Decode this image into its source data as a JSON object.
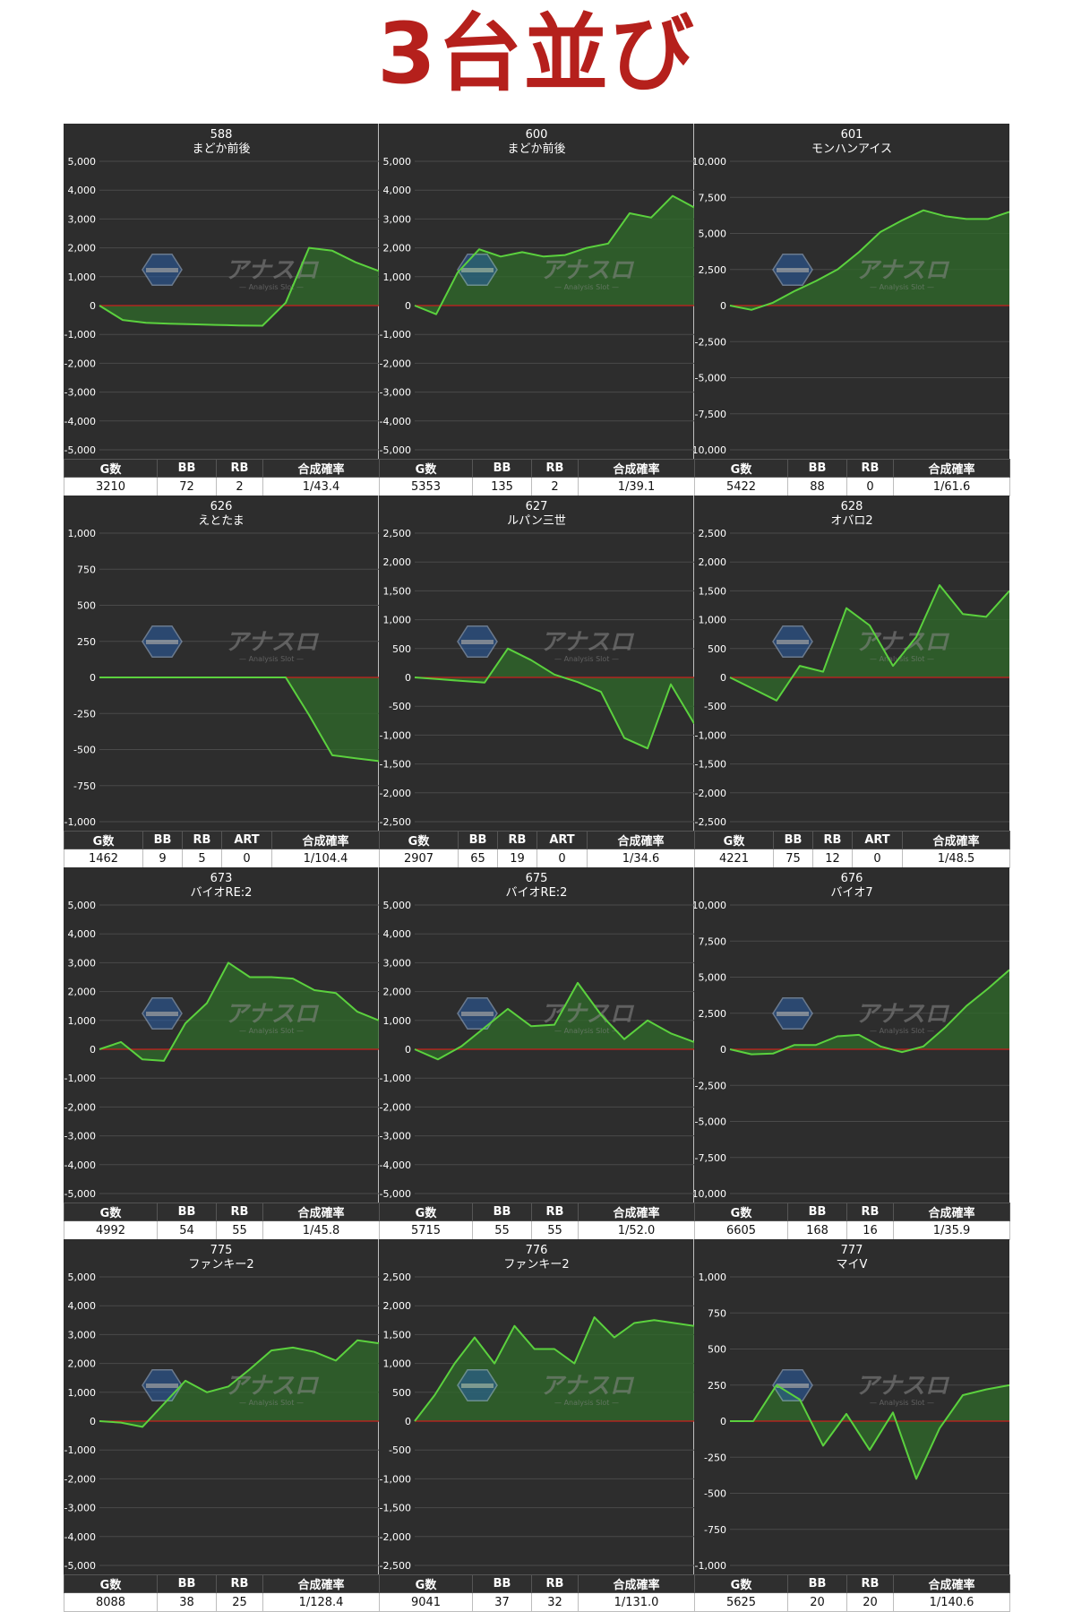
{
  "page": {
    "title": "3台並び"
  },
  "watermark": {
    "text": "アナスロ",
    "subtext": "— Analysis Slot —"
  },
  "colors": {
    "background": "#2d2d2d",
    "grid": "#4a4a4a",
    "line": "#5bd13e",
    "fill": "#2f6b2a",
    "zero_line": "#c8201e",
    "title_red": "#b5201c"
  },
  "chart_data": [
    {
      "type": "area",
      "machine_no": "588",
      "name": "まどか前後",
      "ylim": [
        -5000,
        5000
      ],
      "yticks": [
        "5,000",
        "4,000",
        "3,000",
        "2,000",
        "1,000",
        "0",
        "-1,000",
        "-2,000",
        "-3,000",
        "-4,000",
        "-5,000"
      ],
      "values": [
        0,
        -500,
        -600,
        -630,
        -650,
        -670,
        -690,
        -700,
        100,
        2000,
        1900,
        1500,
        1200
      ],
      "stats": {
        "headers": [
          "G数",
          "BB",
          "RB",
          "合成確率"
        ],
        "values": [
          "3210",
          "72",
          "2",
          "1/43.4"
        ]
      }
    },
    {
      "type": "area",
      "machine_no": "600",
      "name": "まどか前後",
      "ylim": [
        -5000,
        5000
      ],
      "yticks": [
        "5,000",
        "4,000",
        "3,000",
        "2,000",
        "1,000",
        "0",
        "-1,000",
        "-2,000",
        "-3,000",
        "-4,000",
        "-5,000"
      ],
      "values": [
        0,
        -300,
        1150,
        1950,
        1700,
        1850,
        1700,
        1750,
        2000,
        2150,
        3200,
        3050,
        3800,
        3400
      ],
      "stats": {
        "headers": [
          "G数",
          "BB",
          "RB",
          "合成確率"
        ],
        "values": [
          "5353",
          "135",
          "2",
          "1/39.1"
        ]
      }
    },
    {
      "type": "area",
      "machine_no": "601",
      "name": "モンハンアイス",
      "ylim": [
        -10000,
        10000
      ],
      "yticks": [
        "10,000",
        "7,500",
        "5,000",
        "2,500",
        "0",
        "-2,500",
        "-5,000",
        "-7,500",
        "-10,000"
      ],
      "values": [
        0,
        -300,
        200,
        1000,
        1700,
        2500,
        3700,
        5100,
        5900,
        6600,
        6200,
        6000,
        6000,
        6500
      ],
      "stats": {
        "headers": [
          "G数",
          "BB",
          "RB",
          "合成確率"
        ],
        "values": [
          "5422",
          "88",
          "0",
          "1/61.6"
        ]
      }
    },
    {
      "type": "area",
      "machine_no": "626",
      "name": "えとたま",
      "ylim": [
        -1000,
        1000
      ],
      "yticks": [
        "1,000",
        "750",
        "500",
        "250",
        "0",
        "-250",
        "-500",
        "-750",
        "-1,000"
      ],
      "values": [
        0,
        0,
        0,
        0,
        0,
        0,
        0,
        0,
        0,
        -260,
        -540,
        -560,
        -580
      ],
      "stats": {
        "headers": [
          "G数",
          "BB",
          "RB",
          "ART",
          "合成確率"
        ],
        "values": [
          "1462",
          "9",
          "5",
          "0",
          "1/104.4"
        ]
      }
    },
    {
      "type": "area",
      "machine_no": "627",
      "name": "ルパン三世",
      "ylim": [
        -2500,
        2500
      ],
      "yticks": [
        "2,500",
        "2,000",
        "1,500",
        "1,000",
        "500",
        "0",
        "-500",
        "-1,000",
        "-1,500",
        "-2,000",
        "-2,500"
      ],
      "values": [
        0,
        -30,
        -60,
        -90,
        500,
        300,
        50,
        -80,
        -250,
        -1050,
        -1230,
        -120,
        -800
      ],
      "stats": {
        "headers": [
          "G数",
          "BB",
          "RB",
          "ART",
          "合成確率"
        ],
        "values": [
          "2907",
          "65",
          "19",
          "0",
          "1/34.6"
        ]
      }
    },
    {
      "type": "area",
      "machine_no": "628",
      "name": "オバロ2",
      "ylim": [
        -2500,
        2500
      ],
      "yticks": [
        "2,500",
        "2,000",
        "1,500",
        "1,000",
        "500",
        "0",
        "-500",
        "-1,000",
        "-1,500",
        "-2,000",
        "-2,500"
      ],
      "values": [
        0,
        -200,
        -400,
        200,
        100,
        1200,
        900,
        200,
        700,
        1600,
        1100,
        1050,
        1500
      ],
      "stats": {
        "headers": [
          "G数",
          "BB",
          "RB",
          "ART",
          "合成確率"
        ],
        "values": [
          "4221",
          "75",
          "12",
          "0",
          "1/48.5"
        ]
      }
    },
    {
      "type": "area",
      "machine_no": "673",
      "name": "バイオRE:2",
      "ylim": [
        -5000,
        5000
      ],
      "yticks": [
        "5,000",
        "4,000",
        "3,000",
        "2,000",
        "1,000",
        "0",
        "-1,000",
        "-2,000",
        "-3,000",
        "-4,000",
        "-5,000"
      ],
      "values": [
        0,
        250,
        -350,
        -400,
        900,
        1600,
        3000,
        2500,
        2500,
        2450,
        2050,
        1950,
        1300,
        1000
      ],
      "stats": {
        "headers": [
          "G数",
          "BB",
          "RB",
          "合成確率"
        ],
        "values": [
          "4992",
          "54",
          "55",
          "1/45.8"
        ]
      }
    },
    {
      "type": "area",
      "machine_no": "675",
      "name": "バイオRE:2",
      "ylim": [
        -5000,
        5000
      ],
      "yticks": [
        "5,000",
        "4,000",
        "3,000",
        "2,000",
        "1,000",
        "0",
        "-1,000",
        "-2,000",
        "-3,000",
        "-4,000",
        "-5,000"
      ],
      "values": [
        0,
        -350,
        100,
        750,
        1400,
        800,
        850,
        2300,
        1200,
        350,
        1000,
        550,
        250
      ],
      "stats": {
        "headers": [
          "G数",
          "BB",
          "RB",
          "合成確率"
        ],
        "values": [
          "5715",
          "55",
          "55",
          "1/52.0"
        ]
      }
    },
    {
      "type": "area",
      "machine_no": "676",
      "name": "バイオ7",
      "ylim": [
        -10000,
        10000
      ],
      "yticks": [
        "10,000",
        "7,500",
        "5,000",
        "2,500",
        "0",
        "-2,500",
        "-5,000",
        "-7,500",
        "-10,000"
      ],
      "values": [
        0,
        -350,
        -300,
        300,
        300,
        900,
        1000,
        200,
        -200,
        200,
        1500,
        3000,
        4200,
        5500
      ],
      "stats": {
        "headers": [
          "G数",
          "BB",
          "RB",
          "合成確率"
        ],
        "values": [
          "6605",
          "168",
          "16",
          "1/35.9"
        ]
      }
    },
    {
      "type": "area",
      "machine_no": "775",
      "name": "ファンキー2",
      "ylim": [
        -5000,
        5000
      ],
      "yticks": [
        "5,000",
        "4,000",
        "3,000",
        "2,000",
        "1,000",
        "0",
        "-1,000",
        "-2,000",
        "-3,000",
        "-4,000",
        "-5,000"
      ],
      "values": [
        0,
        -50,
        -200,
        600,
        1400,
        1000,
        1200,
        1800,
        2450,
        2550,
        2400,
        2100,
        2800,
        2700
      ],
      "stats": {
        "headers": [
          "G数",
          "BB",
          "RB",
          "合成確率"
        ],
        "values": [
          "8088",
          "38",
          "25",
          "1/128.4"
        ]
      }
    },
    {
      "type": "area",
      "machine_no": "776",
      "name": "ファンキー2",
      "ylim": [
        -2500,
        2500
      ],
      "yticks": [
        "2,500",
        "2,000",
        "1,500",
        "1,000",
        "500",
        "0",
        "-500",
        "-1,000",
        "-1,500",
        "-2,000",
        "-2,500"
      ],
      "values": [
        0,
        450,
        1000,
        1450,
        1000,
        1650,
        1250,
        1250,
        1000,
        1800,
        1450,
        1700,
        1750,
        1700,
        1650
      ],
      "stats": {
        "headers": [
          "G数",
          "BB",
          "RB",
          "合成確率"
        ],
        "values": [
          "9041",
          "37",
          "32",
          "1/131.0"
        ]
      }
    },
    {
      "type": "area",
      "machine_no": "777",
      "name": "マイV",
      "ylim": [
        -1000,
        1000
      ],
      "yticks": [
        "1,000",
        "750",
        "500",
        "250",
        "0",
        "-250",
        "-500",
        "-750",
        "-1,000"
      ],
      "values": [
        0,
        0,
        250,
        150,
        -170,
        50,
        -200,
        60,
        -400,
        -50,
        180,
        220,
        250
      ],
      "stats": {
        "headers": [
          "G数",
          "BB",
          "RB",
          "合成確率"
        ],
        "values": [
          "5625",
          "20",
          "20",
          "1/140.6"
        ]
      }
    }
  ]
}
